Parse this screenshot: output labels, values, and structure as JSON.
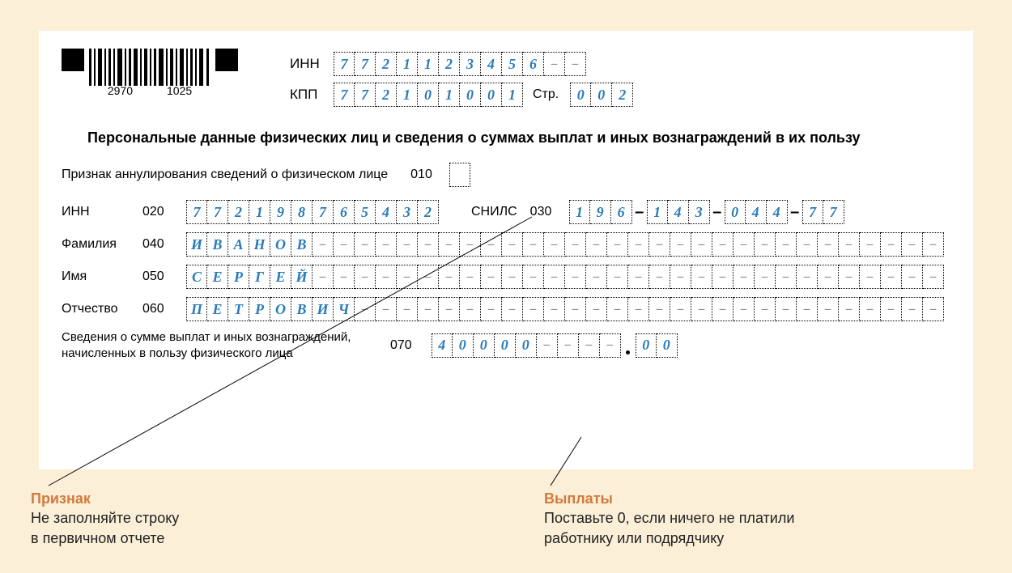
{
  "page_bg": "#fbefd8",
  "paper_bg": "#ffffff",
  "digit_color": "#2b7bb8",
  "barcode": {
    "num_left": "2970",
    "num_right": "1025"
  },
  "inn_label": "ИНН",
  "kpp_label": "КПП",
  "page_label": "Стр.",
  "inn_top": [
    "7",
    "7",
    "2",
    "1",
    "1",
    "2",
    "3",
    "4",
    "5",
    "6",
    "–",
    "–"
  ],
  "kpp": [
    "7",
    "7",
    "2",
    "1",
    "0",
    "1",
    "0",
    "0",
    "1"
  ],
  "page": [
    "0",
    "0",
    "2"
  ],
  "section_title": "Персональные данные физических лиц и сведения о суммах выплат и иных вознаграждений в их пользу",
  "cancel": {
    "label": "Признак аннулирования сведений о физическом лице",
    "code": "010",
    "value": [
      ""
    ]
  },
  "inn_person": {
    "label": "ИНН",
    "code": "020",
    "value": [
      "7",
      "7",
      "2",
      "1",
      "9",
      "8",
      "7",
      "6",
      "5",
      "4",
      "3",
      "2"
    ]
  },
  "snils": {
    "label": "СНИЛС",
    "code": "030",
    "groups": [
      [
        "1",
        "9",
        "6"
      ],
      [
        "1",
        "4",
        "3"
      ],
      [
        "0",
        "4",
        "4"
      ],
      [
        "7",
        "7"
      ]
    ]
  },
  "surname": {
    "label": "Фамилия",
    "code": "040",
    "value": [
      "И",
      "В",
      "А",
      "Н",
      "О",
      "В",
      "–",
      "–",
      "–",
      "–",
      "–",
      "–",
      "–",
      "–",
      "–",
      "–",
      "–",
      "–",
      "–",
      "–",
      "–",
      "–",
      "–",
      "–",
      "–",
      "–",
      "–",
      "–",
      "–",
      "–",
      "–",
      "–",
      "–",
      "–",
      "–",
      "–"
    ]
  },
  "name": {
    "label": "Имя",
    "code": "050",
    "value": [
      "С",
      "Е",
      "Р",
      "Г",
      "Е",
      "Й",
      "–",
      "–",
      "–",
      "–",
      "–",
      "–",
      "–",
      "–",
      "–",
      "–",
      "–",
      "–",
      "–",
      "–",
      "–",
      "–",
      "–",
      "–",
      "–",
      "–",
      "–",
      "–",
      "–",
      "–",
      "–",
      "–",
      "–",
      "–",
      "–",
      "–"
    ]
  },
  "patronym": {
    "label": "Отчество",
    "code": "060",
    "value": [
      "П",
      "Е",
      "Т",
      "Р",
      "О",
      "В",
      "И",
      "Ч",
      "–",
      "–",
      "–",
      "–",
      "–",
      "–",
      "–",
      "–",
      "–",
      "–",
      "–",
      "–",
      "–",
      "–",
      "–",
      "–",
      "–",
      "–",
      "–",
      "–",
      "–",
      "–",
      "–",
      "–",
      "–",
      "–",
      "–",
      "–"
    ]
  },
  "sum": {
    "label1": "Сведения о сумме выплат и иных вознаграждений,",
    "label2": "начисленных в пользу физического лица",
    "code": "070",
    "int": [
      "4",
      "0",
      "0",
      "0",
      "0",
      "–",
      "–",
      "–",
      "–"
    ],
    "frac": [
      "0",
      "0"
    ]
  },
  "anno1": {
    "title": "Признак",
    "l1": "Не заполняйте строку",
    "l2": "в первичном отчете"
  },
  "anno2": {
    "title": "Выплаты",
    "l1": "Поставьте 0, если ничего не платили",
    "l2": "работнику или подрядчику"
  }
}
